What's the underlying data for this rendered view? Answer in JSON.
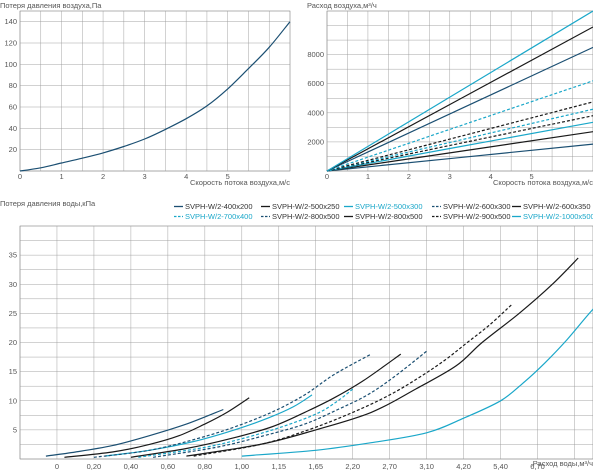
{
  "colors": {
    "dark_teal": "#1b4f72",
    "black": "#1a1a1a",
    "cyan": "#1aa7c9",
    "grid": "#9a9a9a"
  },
  "chart_data": [
    {
      "id": "air_pressure",
      "type": "line",
      "title": "Потеря давления воздуха,Па",
      "xlabel": "Скорость потока воздуха,м/с",
      "ylabel": "",
      "xlim": [
        0,
        6
      ],
      "ylim": [
        0,
        150
      ],
      "xticks": [
        "0",
        "1",
        "2",
        "3",
        "4",
        "5"
      ],
      "yticks": [
        "20",
        "40",
        "60",
        "80",
        "100",
        "120",
        "140"
      ],
      "series": [
        {
          "color": "#1b4f72",
          "dashed": false,
          "points": [
            [
              0,
              0
            ],
            [
              0.5,
              3
            ],
            [
              1,
              7.5
            ],
            [
              1.5,
              12
            ],
            [
              2,
              17
            ],
            [
              2.5,
              23
            ],
            [
              3,
              30
            ],
            [
              3.5,
              39
            ],
            [
              4,
              49
            ],
            [
              4.5,
              61
            ],
            [
              5,
              77
            ],
            [
              5.5,
              96
            ],
            [
              6,
              116
            ],
            [
              6.5,
              140
            ]
          ]
        }
      ]
    },
    {
      "id": "air_flow",
      "type": "line",
      "title": "Расход воздуха,м³/ч",
      "xlabel": "Скорость потока воздуха,м/с",
      "ylabel": "",
      "xlim": [
        0,
        6
      ],
      "ylim": [
        0,
        11000
      ],
      "xticks": [
        "0",
        "1",
        "2",
        "3",
        "4",
        "5"
      ],
      "yticks": [
        "2000",
        "4000",
        "6000",
        "8000"
      ],
      "series": [
        {
          "color": "#1b4f72",
          "dashed": false,
          "points": [
            [
              0,
              0
            ],
            [
              6.5,
              1850
            ]
          ]
        },
        {
          "color": "#1a1a1a",
          "dashed": false,
          "points": [
            [
              0,
              0
            ],
            [
              6.5,
              2700
            ]
          ]
        },
        {
          "color": "#1aa7c9",
          "dashed": false,
          "points": [
            [
              0,
              0
            ],
            [
              6.5,
              3350
            ]
          ]
        },
        {
          "color": "#1a1a1a",
          "dashed": true,
          "points": [
            [
              0,
              0
            ],
            [
              6.5,
              3800
            ]
          ]
        },
        {
          "color": "#1aa7c9",
          "dashed": true,
          "points": [
            [
              0,
              0
            ],
            [
              6.5,
              4250
            ]
          ]
        },
        {
          "color": "#1a1a1a",
          "dashed": true,
          "points": [
            [
              0,
              0
            ],
            [
              6.5,
              4750
            ]
          ]
        },
        {
          "color": "#1aa7c9",
          "dashed": true,
          "points": [
            [
              0,
              0
            ],
            [
              6.5,
              6200
            ]
          ]
        },
        {
          "color": "#1b4f72",
          "dashed": false,
          "points": [
            [
              0,
              0
            ],
            [
              6.5,
              8500
            ]
          ]
        },
        {
          "color": "#1a1a1a",
          "dashed": false,
          "points": [
            [
              0,
              0
            ],
            [
              6.5,
              9900
            ]
          ]
        },
        {
          "color": "#1aa7c9",
          "dashed": false,
          "points": [
            [
              0,
              0
            ],
            [
              6.5,
              11000
            ]
          ]
        }
      ]
    },
    {
      "id": "water_pressure",
      "type": "line",
      "title": "Потеря давления воды,кПа",
      "xlabel": "Расход воды,м³/ч",
      "ylabel": "",
      "xticks": [
        "0",
        "0,20",
        "0,40",
        "0,60",
        "0,80",
        "1,00",
        "1,15",
        "1,65",
        "2,20",
        "2,70",
        "3,10",
        "4,20",
        "5,40",
        "6,70"
      ],
      "yticks": [
        "5",
        "10",
        "15",
        "20",
        "25",
        "30",
        "35"
      ],
      "ylim": [
        0,
        40
      ],
      "legend": [
        {
          "label": "SVPH-W/2-400x200",
          "color": "#1b4f72",
          "dashed": false
        },
        {
          "label": "SVPH-W/2-500x250",
          "color": "#1a1a1a",
          "dashed": false
        },
        {
          "label": "SVPH-W/2-500x300",
          "color": "#1aa7c9",
          "dashed": false
        },
        {
          "label": "SVPH-W/2-600x300",
          "color": "#1b4f72",
          "dashed": true
        },
        {
          "label": "SVPH-W/2-600x350",
          "color": "#1a1a1a",
          "dashed": false
        },
        {
          "label": "SVPH-W/2-700x400",
          "color": "#1aa7c9",
          "dashed": true
        },
        {
          "label": "SVPH-W/2-800x500",
          "color": "#1b4f72",
          "dashed": true
        },
        {
          "label": "SVPH-W/2-800x500",
          "color": "#1a1a1a",
          "dashed": false
        },
        {
          "label": "SVPH-W/2-900x500",
          "color": "#1a1a1a",
          "dashed": true
        },
        {
          "label": "SVPH-W/2-1000x500",
          "color": "#1aa7c9",
          "dashed": false
        }
      ],
      "series": [
        {
          "color": "#1b4f72",
          "dashed": false,
          "points": [
            [
              0.7,
              0.5
            ],
            [
              1.5,
              1.2
            ],
            [
              2.5,
              2.3
            ],
            [
              3.5,
              4
            ],
            [
              4.5,
              6
            ],
            [
              5.5,
              8.5
            ]
          ]
        },
        {
          "color": "#1a1a1a",
          "dashed": false,
          "points": [
            [
              1.2,
              0.3
            ],
            [
              2.5,
              1.2
            ],
            [
              3.5,
              2.5
            ],
            [
              4.3,
              4
            ],
            [
              5.0,
              6
            ],
            [
              5.6,
              8
            ],
            [
              6.2,
              10.5
            ]
          ]
        },
        {
          "color": "#1aa7c9",
          "dashed": false,
          "points": [
            [
              2.3,
              0.5
            ],
            [
              3.5,
              1.5
            ],
            [
              4.7,
              3
            ],
            [
              5.8,
              5
            ],
            [
              6.7,
              7
            ],
            [
              7.4,
              9
            ],
            [
              7.9,
              11
            ]
          ]
        },
        {
          "color": "#1b4f72",
          "dashed": true,
          "points": [
            [
              2.0,
              0.3
            ],
            [
              3.5,
              1.5
            ],
            [
              4.8,
              3.5
            ],
            [
              5.8,
              5.5
            ],
            [
              6.8,
              8
            ],
            [
              7.7,
              11
            ],
            [
              8.5,
              14.5
            ],
            [
              9.5,
              18
            ]
          ]
        },
        {
          "color": "#1a1a1a",
          "dashed": false,
          "points": [
            [
              3.0,
              0.3
            ],
            [
              4.5,
              1.8
            ],
            [
              5.7,
              3.5
            ],
            [
              6.8,
              5.5
            ],
            [
              7.7,
              8
            ],
            [
              8.5,
              10.5
            ],
            [
              9.3,
              13.5
            ],
            [
              10.3,
              18
            ]
          ]
        },
        {
          "color": "#1aa7c9",
          "dashed": true,
          "points": [
            [
              3.2,
              0.3
            ],
            [
              5.0,
              2
            ],
            [
              6.3,
              4
            ],
            [
              7.3,
              6
            ],
            [
              8.1,
              8
            ],
            [
              8.6,
              10
            ],
            [
              9.0,
              12
            ]
          ]
        },
        {
          "color": "#1b4f72",
          "dashed": true,
          "points": [
            [
              3.6,
              0.3
            ],
            [
              5.3,
              2
            ],
            [
              6.6,
              4
            ],
            [
              7.7,
              6
            ],
            [
              8.6,
              8.5
            ],
            [
              9.4,
              11
            ],
            [
              10.1,
              14
            ],
            [
              11,
              18.5
            ]
          ]
        },
        {
          "color": "#1a1a1a",
          "dashed": false,
          "points": [
            [
              4.5,
              0.5
            ],
            [
              6.5,
              2.5
            ],
            [
              8.0,
              5
            ],
            [
              9.5,
              8
            ],
            [
              10.7,
              12
            ],
            [
              11.8,
              16
            ],
            [
              12.5,
              20
            ],
            [
              13.5,
              25
            ],
            [
              14.4,
              30
            ],
            [
              15.1,
              34.5
            ]
          ]
        },
        {
          "color": "#1a1a1a",
          "dashed": true,
          "points": [
            [
              4.7,
              0.5
            ],
            [
              6.5,
              2.5
            ],
            [
              7.8,
              5
            ],
            [
              9.0,
              8
            ],
            [
              10.0,
              11
            ],
            [
              10.8,
              14
            ],
            [
              11.5,
              17
            ],
            [
              12.1,
              20
            ],
            [
              12.7,
              23
            ],
            [
              13.3,
              26.5
            ]
          ]
        },
        {
          "color": "#1aa7c9",
          "dashed": false,
          "points": [
            [
              6.0,
              0.5
            ],
            [
              8.0,
              1.5
            ],
            [
              9.5,
              2.8
            ],
            [
              11.0,
              4.5
            ],
            [
              12.0,
              7
            ],
            [
              13.0,
              10
            ],
            [
              13.6,
              13
            ],
            [
              14.2,
              16.5
            ],
            [
              14.8,
              20.5
            ],
            [
              15.4,
              25
            ],
            [
              15.9,
              28.5
            ],
            [
              16.4,
              32.5
            ]
          ]
        }
      ]
    }
  ]
}
